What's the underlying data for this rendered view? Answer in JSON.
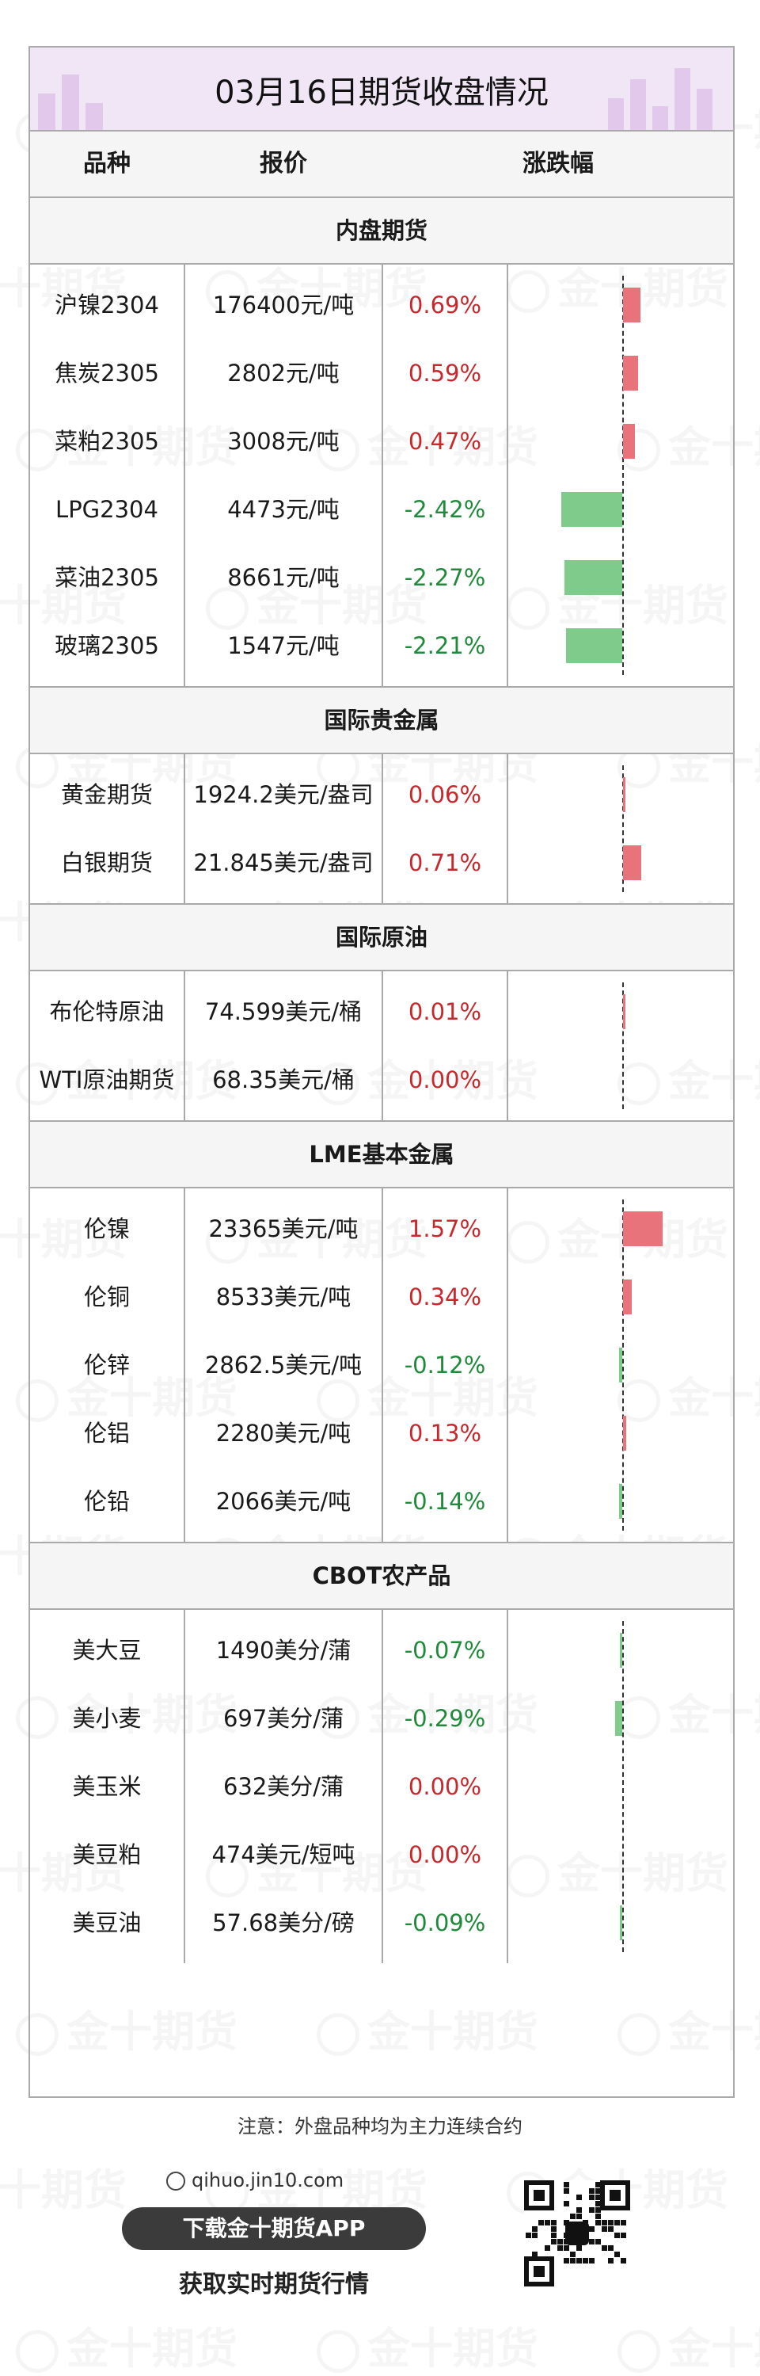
{
  "title": "03月16日期货收盘情况",
  "header": {
    "col1": "品种",
    "col2": "报价",
    "col3": "涨跌幅"
  },
  "watermark": "金十期货",
  "sections": [
    {
      "name": "内盘期货",
      "rows": [
        {
          "name": "沪镍2304",
          "price": "176400元/吨",
          "change": "0.69%",
          "value": 0.69
        },
        {
          "name": "焦炭2305",
          "price": "2802元/吨",
          "change": "0.59%",
          "value": 0.59
        },
        {
          "name": "菜粕2305",
          "price": "3008元/吨",
          "change": "0.47%",
          "value": 0.47
        },
        {
          "name": "LPG2304",
          "price": "4473元/吨",
          "change": "-2.42%",
          "value": -2.42
        },
        {
          "name": "菜油2305",
          "price": "8661元/吨",
          "change": "-2.27%",
          "value": -2.27
        },
        {
          "name": "玻璃2305",
          "price": "1547元/吨",
          "change": "-2.21%",
          "value": -2.21
        }
      ]
    },
    {
      "name": "国际贵金属",
      "rows": [
        {
          "name": "黄金期货",
          "price": "1924.2美元/盎司",
          "change": "0.06%",
          "value": 0.06
        },
        {
          "name": "白银期货",
          "price": "21.845美元/盎司",
          "change": "0.71%",
          "value": 0.71
        }
      ]
    },
    {
      "name": "国际原油",
      "rows": [
        {
          "name": "布伦特原油",
          "price": "74.599美元/桶",
          "change": "0.01%",
          "value": 0.01
        },
        {
          "name": "WTI原油期货",
          "price": "68.35美元/桶",
          "change": "0.00%",
          "value": 0.0
        }
      ]
    },
    {
      "name": "LME基本金属",
      "rows": [
        {
          "name": "伦镍",
          "price": "23365美元/吨",
          "change": "1.57%",
          "value": 1.57
        },
        {
          "name": "伦铜",
          "price": "8533美元/吨",
          "change": "0.34%",
          "value": 0.34
        },
        {
          "name": "伦锌",
          "price": "2862.5美元/吨",
          "change": "-0.12%",
          "value": -0.12
        },
        {
          "name": "伦铝",
          "price": "2280美元/吨",
          "change": "0.13%",
          "value": 0.13
        },
        {
          "name": "伦铅",
          "price": "2066美元/吨",
          "change": "-0.14%",
          "value": -0.14
        }
      ]
    },
    {
      "name": "CBOT农产品",
      "rows": [
        {
          "name": "美大豆",
          "price": "1490美分/蒲",
          "change": "-0.07%",
          "value": -0.07
        },
        {
          "name": "美小麦",
          "price": "697美分/蒲",
          "change": "-0.29%",
          "value": -0.29
        },
        {
          "name": "美玉米",
          "price": "632美分/蒲",
          "change": "0.00%",
          "value": 0.0
        },
        {
          "name": "美豆粕",
          "price": "474美元/短吨",
          "change": "0.00%",
          "value": 0.0
        },
        {
          "name": "美豆油",
          "price": "57.68美分/磅",
          "change": "-0.09%",
          "value": -0.09
        }
      ]
    }
  ],
  "note": "注意：外盘品种均为主力连续合约",
  "footer": {
    "url": "qihuo.jin10.com",
    "download": "下载金十期货APP",
    "tagline": "获取实时期货行情"
  },
  "colors": {
    "up": "#c8282c",
    "down": "#1f8a3a",
    "bar_up": "#e8737a",
    "bar_down": "#7ecb8c",
    "banner": "#f1e6f6"
  }
}
